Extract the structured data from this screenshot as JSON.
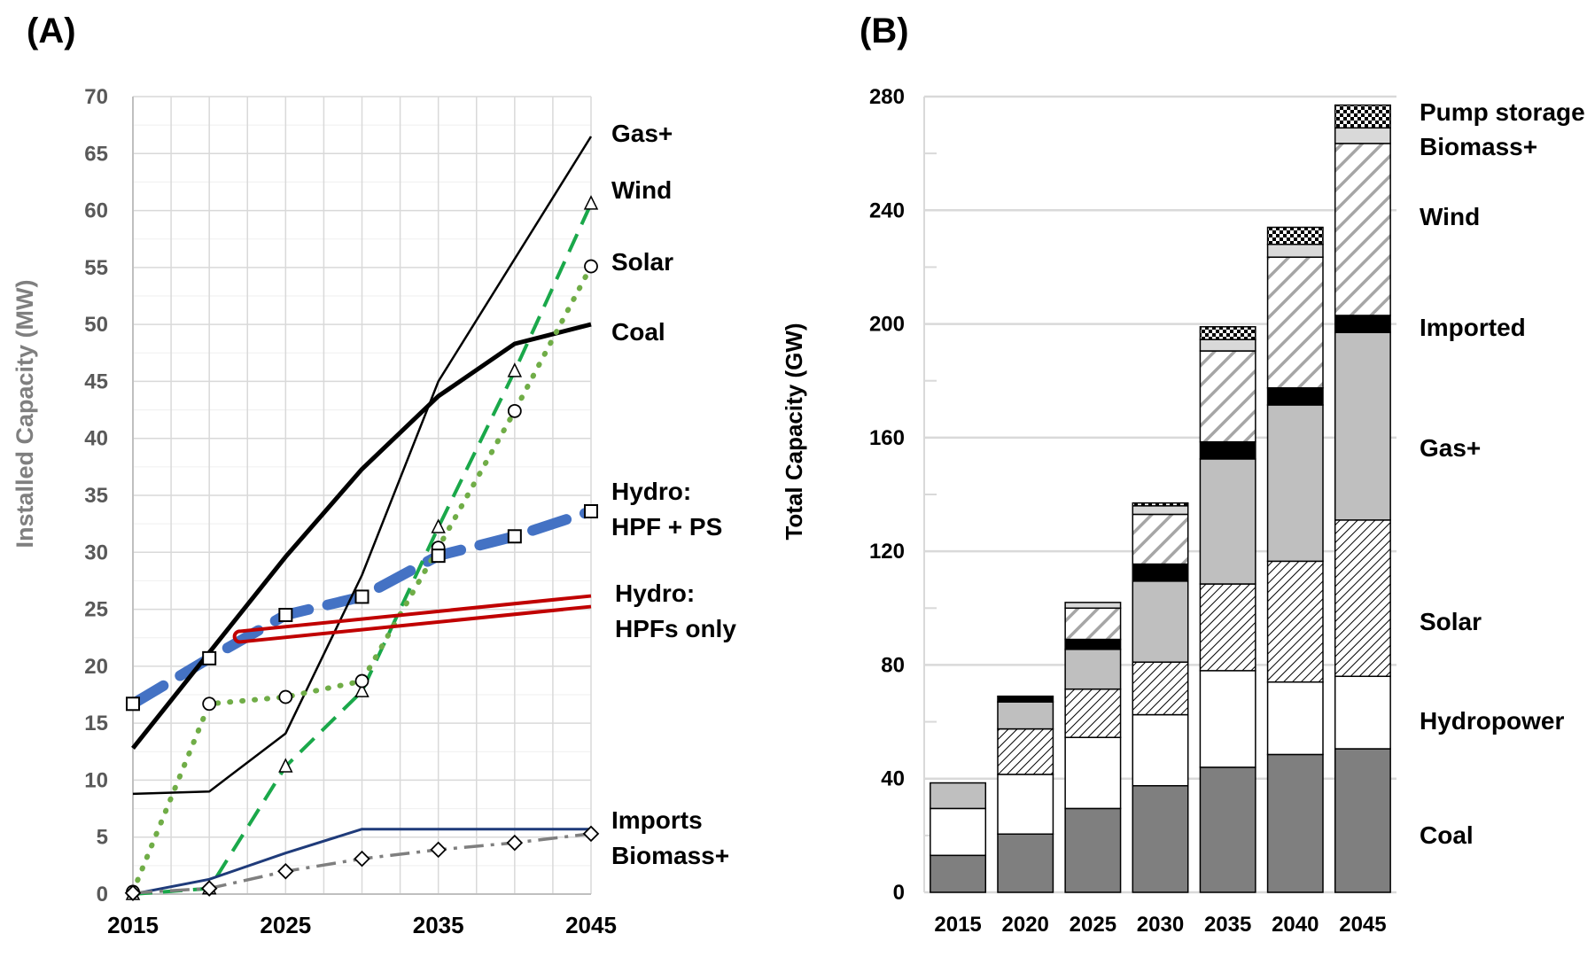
{
  "chart_data": [
    {
      "type": "line",
      "panel": "(A)",
      "ylabel": "Installed Capacity (MW)",
      "xlabel": "",
      "xlim": [
        2015,
        2045
      ],
      "ylim": [
        0,
        70
      ],
      "x_ticks": [
        "2015",
        "2025",
        "2035",
        "2045"
      ],
      "y_ticks": [
        "0",
        "5",
        "10",
        "15",
        "20",
        "25",
        "30",
        "35",
        "40",
        "45",
        "50",
        "55",
        "60",
        "65",
        "70"
      ],
      "grid": true,
      "series": [
        {
          "name": "Gas+",
          "label": "Gas+",
          "color": "#000000",
          "marker": "none",
          "x": [
            2015,
            2020,
            2025,
            2030,
            2035,
            2045
          ],
          "values": [
            8.8,
            9.0,
            14.1,
            28.0,
            45.0,
            66.5
          ]
        },
        {
          "name": "Wind",
          "label": "Wind",
          "color": "#1aa84a",
          "marker": "triangle",
          "x": [
            2015,
            2020,
            2025,
            2030,
            2035,
            2040,
            2045
          ],
          "values": [
            0,
            0.5,
            11.2,
            17.8,
            32.2,
            45.9,
            60.6
          ]
        },
        {
          "name": "Solar",
          "label": "Solar",
          "color": "#70ad47",
          "marker": "circle",
          "x": [
            2015,
            2020,
            2025,
            2030,
            2035,
            2040,
            2045
          ],
          "values": [
            0.2,
            16.7,
            17.3,
            18.7,
            30.4,
            42.4,
            55.1
          ]
        },
        {
          "name": "Coal",
          "label": "Coal",
          "color": "#000000",
          "marker": "none",
          "x": [
            2015,
            2025,
            2030,
            2035,
            2040,
            2045
          ],
          "values": [
            12.8,
            29.6,
            37.3,
            43.7,
            48.3,
            50.0
          ]
        },
        {
          "name": "Hydro: HPF + PS",
          "label_line1": "Hydro:",
          "label_line2": "HPF + PS",
          "color": "#4472c4",
          "marker": "square",
          "x": [
            2015,
            2020,
            2025,
            2030,
            2035,
            2040,
            2045
          ],
          "values": [
            16.7,
            20.7,
            24.5,
            26.1,
            29.7,
            31.4,
            33.6
          ]
        },
        {
          "name": "Hydro: HPFs only",
          "label_line1": "Hydro:",
          "label_line2": "HPFs only",
          "color": "#c00000",
          "marker": "none",
          "x": [
            2022,
            2045
          ],
          "values": [
            22.6,
            25.7
          ]
        },
        {
          "name": "Imports",
          "label": "Imports",
          "color": "#1f3b7a",
          "marker": "none",
          "x": [
            2015,
            2020,
            2025,
            2030,
            2045
          ],
          "values": [
            0,
            1.3,
            3.6,
            5.7,
            5.7
          ]
        },
        {
          "name": "Biomass+",
          "label": "Biomass+",
          "color": "#7f7f7f",
          "marker": "diamond",
          "x": [
            2015,
            2020,
            2025,
            2030,
            2035,
            2040,
            2045
          ],
          "values": [
            0.1,
            0.5,
            2.0,
            3.1,
            3.9,
            4.5,
            5.3
          ]
        }
      ]
    },
    {
      "type": "bar",
      "stacked": true,
      "panel": "(B)",
      "ylabel": "Total Capacity (GW)",
      "xlabel": "",
      "ylim": [
        0,
        280
      ],
      "y_ticks": [
        "0",
        "40",
        "80",
        "120",
        "160",
        "200",
        "240",
        "280"
      ],
      "categories": [
        "2015",
        "2020",
        "2025",
        "2030",
        "2035",
        "2040",
        "2045"
      ],
      "series": [
        {
          "name": "Coal",
          "pattern": "solid-dark",
          "values": [
            13,
            20.5,
            29.5,
            37.5,
            44,
            48.5,
            50.5
          ]
        },
        {
          "name": "Hydropower",
          "pattern": "white",
          "values": [
            16.5,
            21,
            25,
            25,
            34,
            25.5,
            25.5
          ]
        },
        {
          "name": "Solar",
          "pattern": "diagonal-hatch",
          "values": [
            0,
            16,
            17,
            18.5,
            30.5,
            42.5,
            55
          ]
        },
        {
          "name": "Gas+",
          "pattern": "solid-light",
          "values": [
            9,
            9.5,
            14,
            28.5,
            44,
            55,
            66
          ]
        },
        {
          "name": "Imported",
          "pattern": "solid-black",
          "values": [
            0,
            2,
            3.5,
            6,
            6,
            6,
            6
          ]
        },
        {
          "name": "Wind",
          "pattern": "wide-diagonal",
          "values": [
            0,
            0,
            11,
            17.5,
            32,
            46,
            60.5
          ]
        },
        {
          "name": "Biomass+",
          "pattern": "solid-pale",
          "values": [
            0,
            0,
            2,
            3,
            4,
            4.5,
            5.5
          ]
        },
        {
          "name": "Pump storage",
          "pattern": "checker",
          "values": [
            0,
            0,
            0,
            1,
            4.5,
            6,
            8
          ]
        }
      ],
      "legend_labels": [
        "Pump storage",
        "Biomass+",
        "Wind",
        "Imported",
        "Gas+",
        "Solar",
        "Hydropower",
        "Coal"
      ]
    }
  ]
}
